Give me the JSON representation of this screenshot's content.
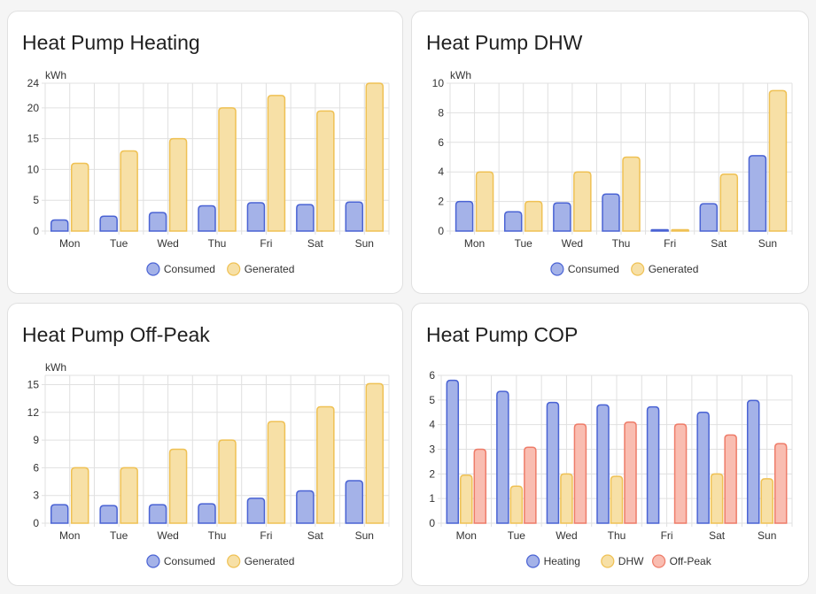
{
  "days": [
    "Mon",
    "Tue",
    "Wed",
    "Thu",
    "Fri",
    "Sat",
    "Sun"
  ],
  "colors": {
    "blue": {
      "fill": "#a4b2e8",
      "stroke": "#4a63d4"
    },
    "yellow": {
      "fill": "#f7e0a6",
      "stroke": "#efc154"
    },
    "red": {
      "fill": "#f9bdb1",
      "stroke": "#ee7c69"
    }
  },
  "chart_data": [
    {
      "id": "heating",
      "title": "Heat Pump Heating",
      "type": "bar",
      "unit": "kWh",
      "ylim": [
        0,
        24
      ],
      "yticks": [
        0,
        5,
        10,
        15,
        20,
        24
      ],
      "grid": true,
      "legend": "bottom",
      "series": [
        {
          "name": "Consumed",
          "color": "blue",
          "values": [
            1.8,
            2.4,
            3.0,
            4.1,
            4.6,
            4.3,
            4.7
          ]
        },
        {
          "name": "Generated",
          "color": "yellow",
          "values": [
            11,
            13,
            15,
            20,
            22,
            19.5,
            24
          ]
        }
      ]
    },
    {
      "id": "dhw",
      "title": "Heat Pump DHW",
      "type": "bar",
      "unit": "kWh",
      "ylim": [
        0,
        10
      ],
      "yticks": [
        0,
        2,
        4,
        6,
        8,
        10
      ],
      "grid": true,
      "legend": "bottom",
      "series": [
        {
          "name": "Consumed",
          "color": "blue",
          "values": [
            2.0,
            1.3,
            1.9,
            2.5,
            0.05,
            1.85,
            5.1
          ]
        },
        {
          "name": "Generated",
          "color": "yellow",
          "values": [
            4.0,
            2.0,
            4.0,
            5.0,
            0.05,
            3.85,
            9.5
          ]
        }
      ]
    },
    {
      "id": "offpeak",
      "title": "Heat Pump Off-Peak",
      "type": "bar",
      "unit": "kWh",
      "ylim": [
        0,
        16
      ],
      "yticks": [
        0,
        3,
        6,
        9,
        12,
        15
      ],
      "grid": true,
      "legend": "bottom",
      "series": [
        {
          "name": "Consumed",
          "color": "blue",
          "values": [
            2.0,
            1.9,
            2.0,
            2.1,
            2.7,
            3.5,
            4.6
          ]
        },
        {
          "name": "Generated",
          "color": "yellow",
          "values": [
            6.0,
            6.0,
            8.0,
            9.0,
            11.0,
            12.6,
            15.1
          ]
        }
      ]
    },
    {
      "id": "cop",
      "title": "Heat Pump COP",
      "type": "bar",
      "unit": "",
      "ylim": [
        0,
        6
      ],
      "yticks": [
        0,
        1,
        2,
        3,
        4,
        5,
        6
      ],
      "grid": true,
      "legend": "bottom",
      "series": [
        {
          "name": "Heating",
          "color": "blue",
          "values": [
            5.8,
            5.35,
            4.9,
            4.8,
            4.72,
            4.5,
            4.98
          ]
        },
        {
          "name": "DHW",
          "color": "yellow",
          "values": [
            1.95,
            1.5,
            2.0,
            1.9,
            0,
            2.0,
            1.8
          ]
        },
        {
          "name": "Off-Peak",
          "color": "red",
          "values": [
            3.0,
            3.08,
            4.02,
            4.1,
            4.02,
            3.58,
            3.23
          ]
        }
      ]
    }
  ]
}
